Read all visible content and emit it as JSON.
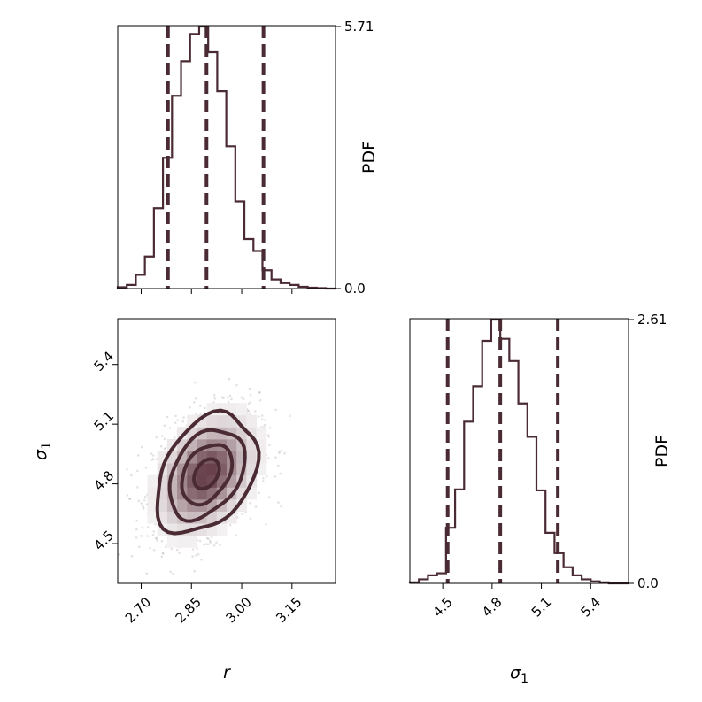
{
  "chart_data": {
    "type": "corner",
    "color": "#4a2b33",
    "panels": [
      {
        "id": "hist-r",
        "type": "histogram",
        "xlim": [
          2.63,
          3.28
        ],
        "ylim": [
          0,
          5.71
        ],
        "ylabel": "PDF",
        "ytick_labels": [
          "0.0",
          "5.71"
        ],
        "bin_edges": [
          2.63,
          2.657,
          2.684,
          2.711,
          2.738,
          2.765,
          2.792,
          2.819,
          2.846,
          2.873,
          2.9,
          2.927,
          2.954,
          2.981,
          3.008,
          3.035,
          3.062,
          3.089,
          3.116,
          3.143,
          3.17,
          3.197,
          3.224,
          3.251,
          3.28
        ],
        "pdf": [
          0.03,
          0.08,
          0.3,
          0.7,
          1.75,
          2.85,
          4.2,
          4.95,
          5.55,
          5.71,
          5.15,
          4.3,
          3.1,
          1.9,
          1.08,
          0.82,
          0.4,
          0.2,
          0.12,
          0.08,
          0.04,
          0.02,
          0.01,
          0.0
        ],
        "quantiles": [
          2.78,
          2.895,
          3.065
        ]
      },
      {
        "id": "scatter-r-sigma1",
        "type": "2d-density",
        "xlim": [
          2.63,
          3.28
        ],
        "ylim": [
          4.3,
          5.63
        ],
        "xlabel": "r",
        "ylabel": "σ1",
        "xticks": [
          2.7,
          2.85,
          3.0,
          3.15
        ],
        "xtick_labels": [
          "2.70",
          "2.85",
          "3.00",
          "3.15"
        ],
        "yticks": [
          4.5,
          4.8,
          5.1,
          5.4
        ],
        "ytick_labels": [
          "4.5",
          "4.8",
          "5.1",
          "5.4"
        ],
        "center": [
          2.895,
          4.85
        ],
        "spread": [
          0.075,
          0.15
        ],
        "correlation": 0.35
      },
      {
        "id": "hist-sigma1",
        "type": "histogram",
        "xlim": [
          4.3,
          5.63
        ],
        "ylim": [
          0,
          2.61
        ],
        "xlabel": "σ1",
        "ylabel": "PDF",
        "xticks": [
          4.5,
          4.8,
          5.1,
          5.4
        ],
        "xtick_labels": [
          "4.5",
          "4.8",
          "5.1",
          "5.4"
        ],
        "ytick_labels": [
          "0.0",
          "2.61"
        ],
        "bin_edges": [
          4.3,
          4.355,
          4.41,
          4.465,
          4.52,
          4.575,
          4.63,
          4.685,
          4.74,
          4.795,
          4.85,
          4.905,
          4.96,
          5.015,
          5.07,
          5.125,
          5.18,
          5.235,
          5.29,
          5.345,
          5.4,
          5.455,
          5.51,
          5.565,
          5.63
        ],
        "pdf": [
          0.01,
          0.04,
          0.08,
          0.1,
          0.55,
          0.93,
          1.6,
          1.95,
          2.4,
          2.61,
          2.42,
          2.2,
          1.78,
          1.45,
          0.92,
          0.5,
          0.3,
          0.16,
          0.08,
          0.04,
          0.02,
          0.01,
          0.0,
          0.0
        ],
        "quantiles": [
          4.53,
          4.85,
          5.2
        ]
      }
    ]
  }
}
